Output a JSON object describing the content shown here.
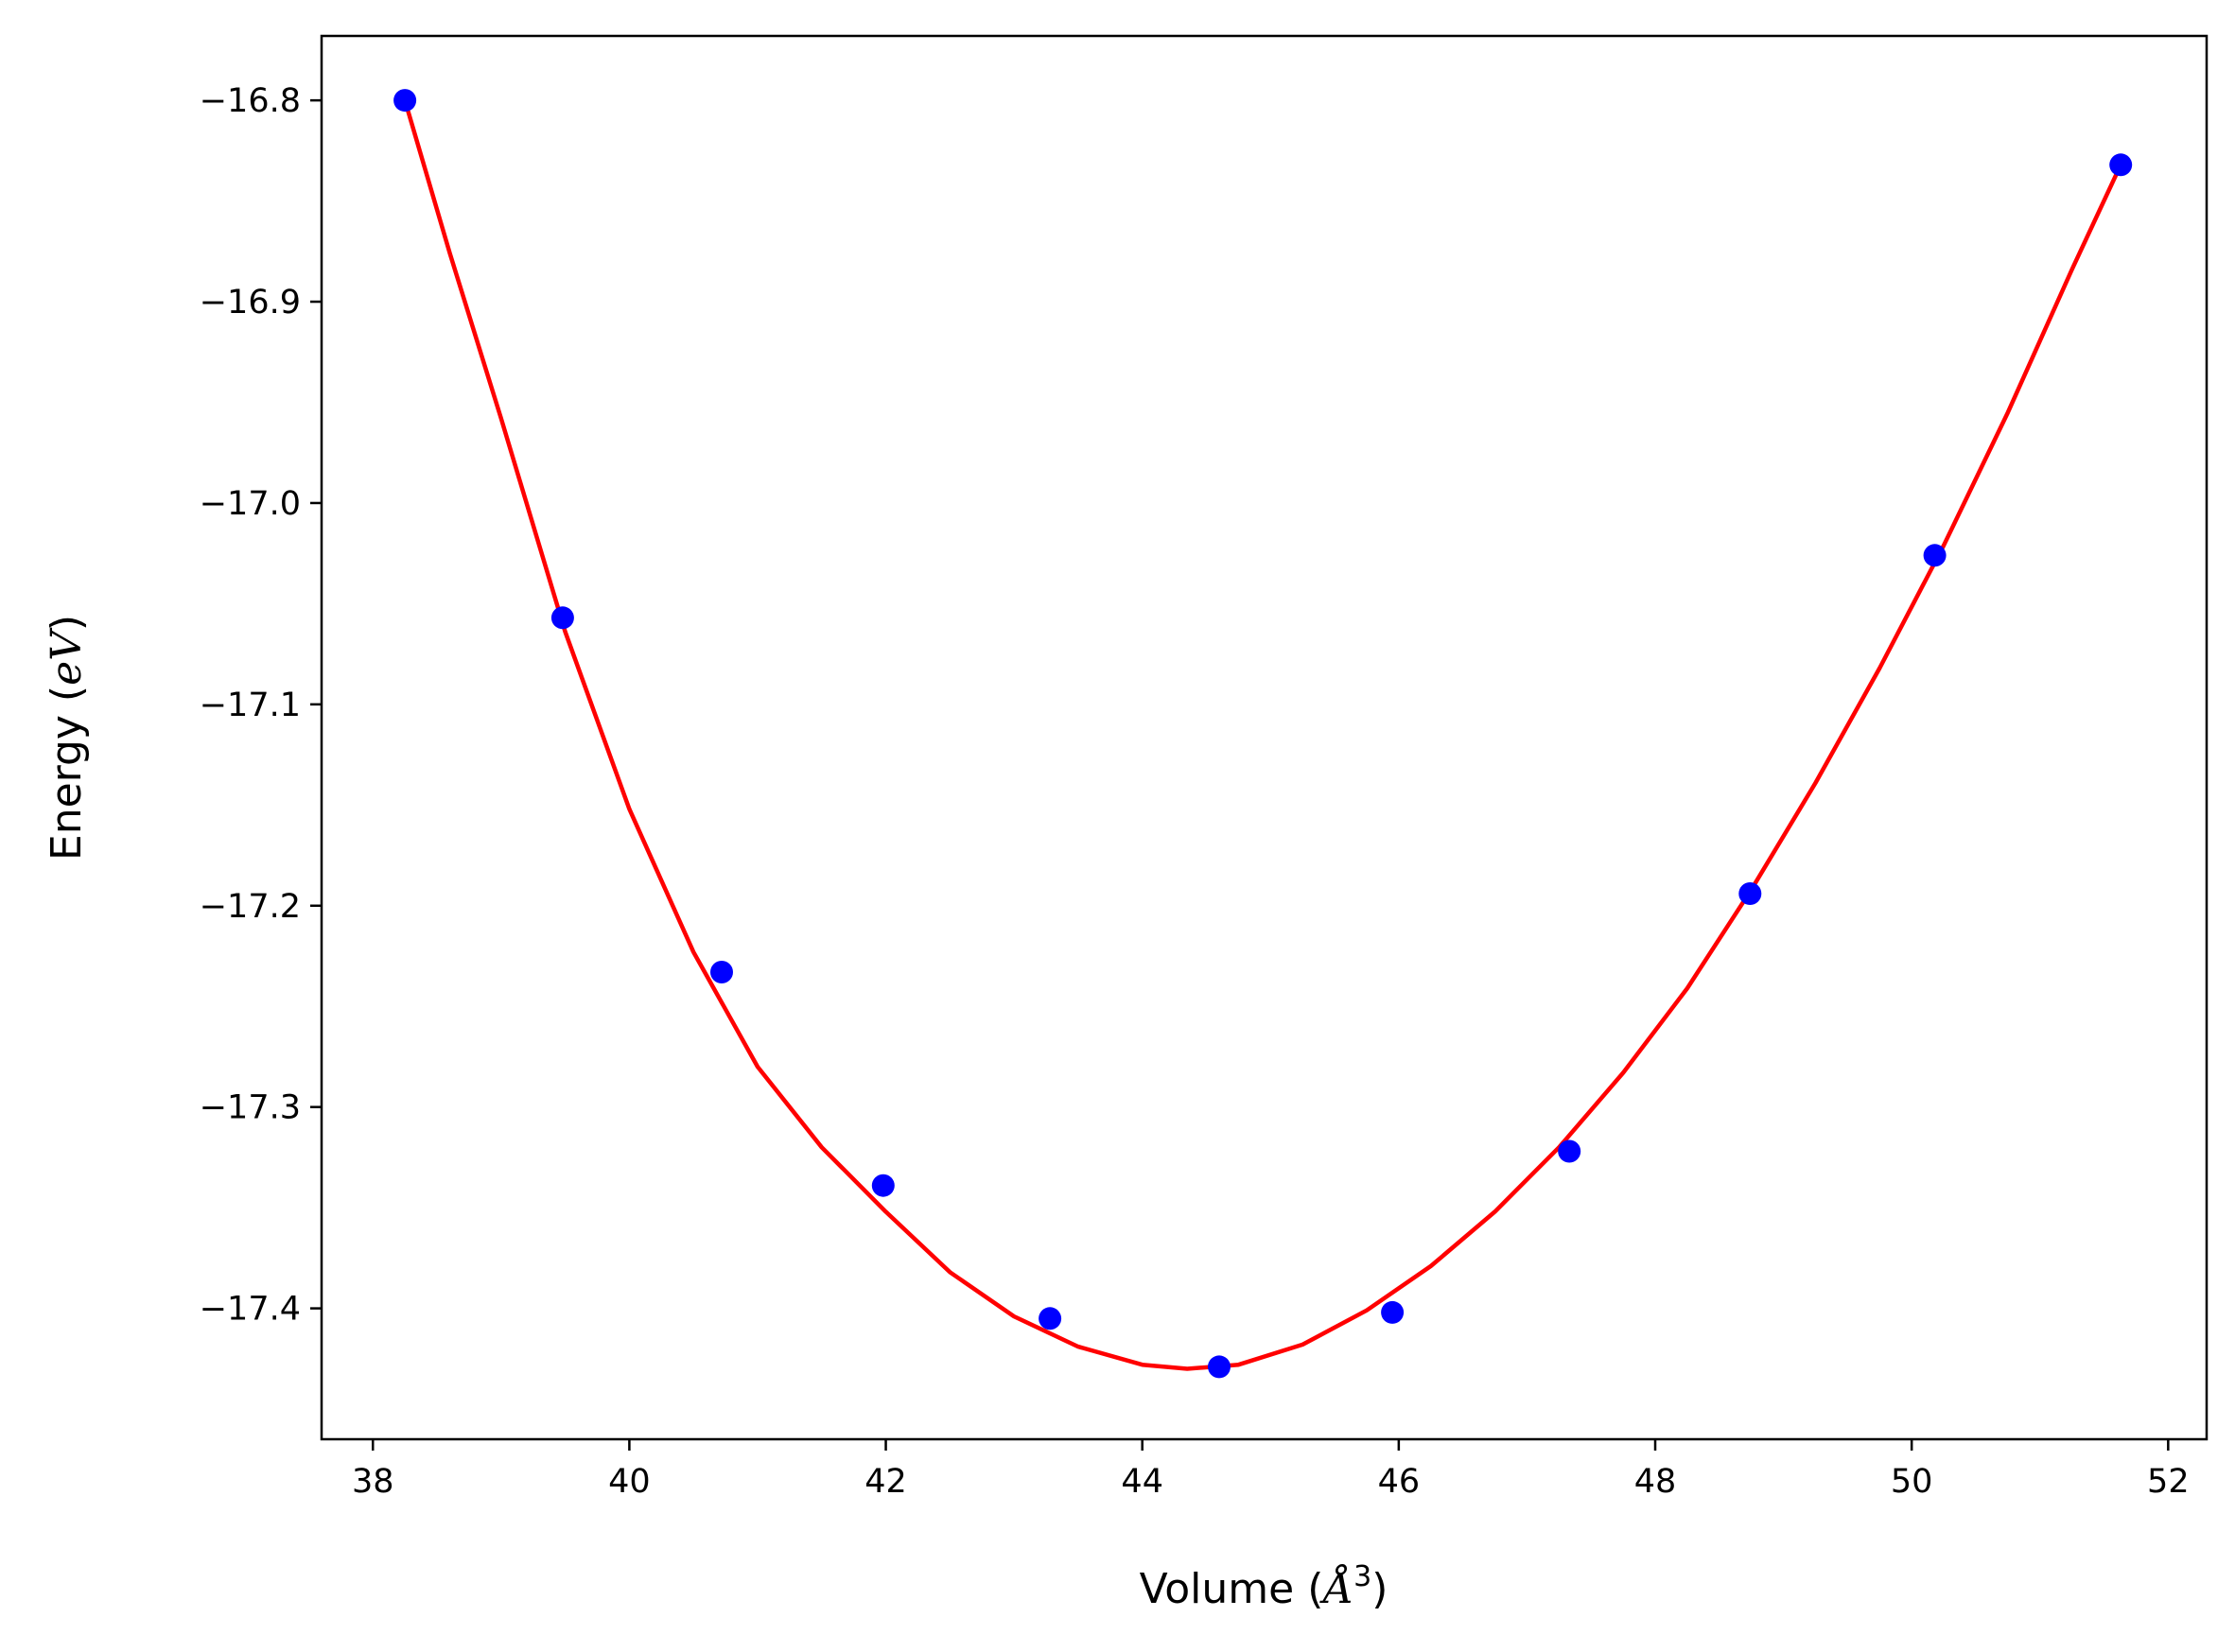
{
  "colors": {
    "fit_line": "#ff0000",
    "points": "#0000ff",
    "axes": "#000000",
    "background": "#ffffff"
  },
  "chart_data": {
    "type": "scatter",
    "title": "",
    "xlabel": {
      "prefix": "Volume (",
      "symbol": "Å",
      "sup": "3",
      "suffix": ")"
    },
    "ylabel": {
      "prefix": "Energy (",
      "unit": "eV",
      "suffix": ")"
    },
    "xlim": [
      37.6,
      52.3
    ],
    "ylim": [
      -17.465,
      -16.768
    ],
    "xticks": [
      38,
      40,
      42,
      44,
      46,
      48,
      50,
      52
    ],
    "yticks": [
      -16.8,
      -16.9,
      -17.0,
      -17.1,
      -17.2,
      -17.3,
      -17.4
    ],
    "xtick_labels": [
      "38",
      "40",
      "42",
      "44",
      "46",
      "48",
      "50",
      "52"
    ],
    "ytick_labels": [
      "−16.8",
      "−16.9",
      "−17.0",
      "−17.1",
      "−17.2",
      "−17.3",
      "−17.4"
    ],
    "grid": false,
    "series": [
      {
        "kind": "scatter",
        "x": [
          38.25,
          39.48,
          40.72,
          41.98,
          43.28,
          44.6,
          45.95,
          47.33,
          48.74,
          50.18,
          51.63
        ],
        "y": [
          -16.8,
          -17.057,
          -17.233,
          -17.339,
          -17.405,
          -17.429,
          -17.402,
          -17.322,
          -17.194,
          -17.026,
          -16.832
        ]
      },
      {
        "kind": "line",
        "x": [
          38.25,
          38.6,
          39.0,
          39.5,
          40.0,
          40.5,
          41.0,
          41.5,
          42.0,
          42.5,
          43.0,
          43.5,
          44.0,
          44.35,
          44.75,
          45.25,
          45.75,
          46.25,
          46.75,
          47.25,
          47.75,
          48.25,
          48.75,
          49.25,
          49.75,
          50.25,
          50.75,
          51.25,
          51.63
        ],
        "y": [
          -16.8,
          -16.876,
          -16.958,
          -17.064,
          -17.152,
          -17.223,
          -17.28,
          -17.32,
          -17.352,
          -17.382,
          -17.404,
          -17.419,
          -17.428,
          -17.43,
          -17.428,
          -17.418,
          -17.401,
          -17.379,
          -17.352,
          -17.32,
          -17.283,
          -17.241,
          -17.192,
          -17.139,
          -17.082,
          -17.021,
          -16.955,
          -16.884,
          -16.832
        ]
      }
    ]
  }
}
